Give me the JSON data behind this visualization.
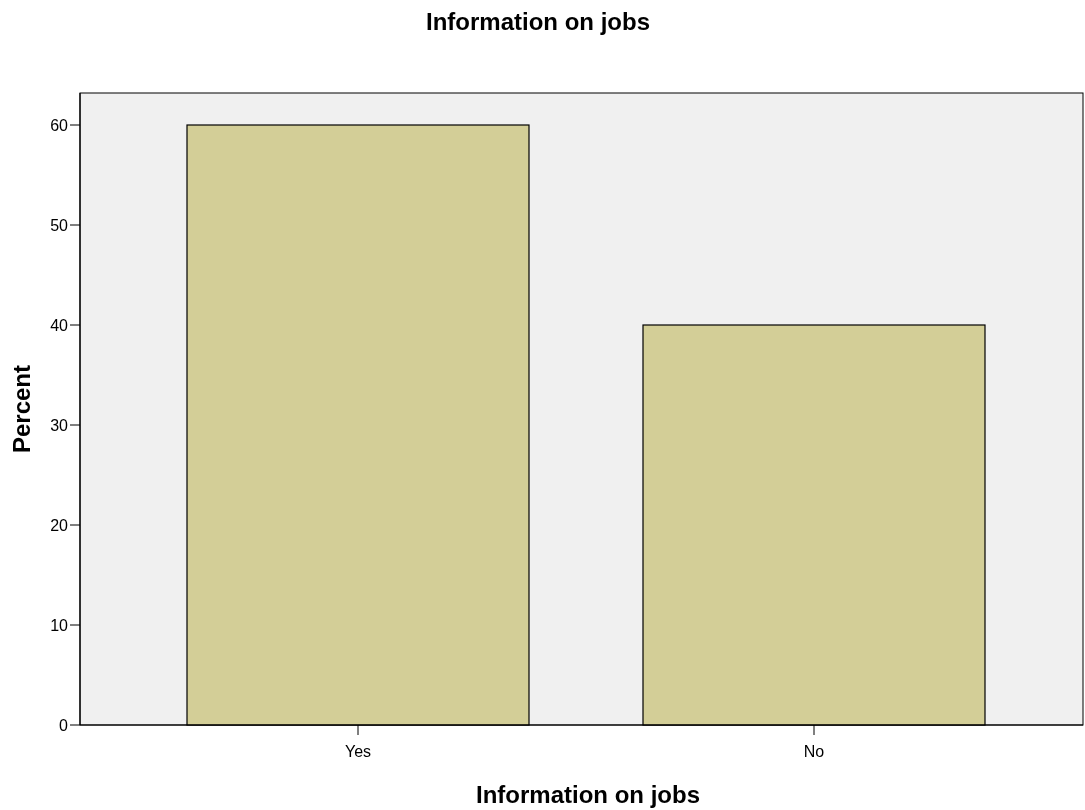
{
  "chart_data": {
    "type": "bar",
    "title": "Information on jobs",
    "xlabel": "Information on jobs",
    "ylabel": "Percent",
    "categories": [
      "Yes",
      "No"
    ],
    "values": [
      60,
      40
    ],
    "color": "#d3ce97",
    "ylim": [
      0,
      63.2
    ],
    "yticks": [
      0,
      10,
      20,
      30,
      40,
      50,
      60
    ],
    "grid": false
  }
}
